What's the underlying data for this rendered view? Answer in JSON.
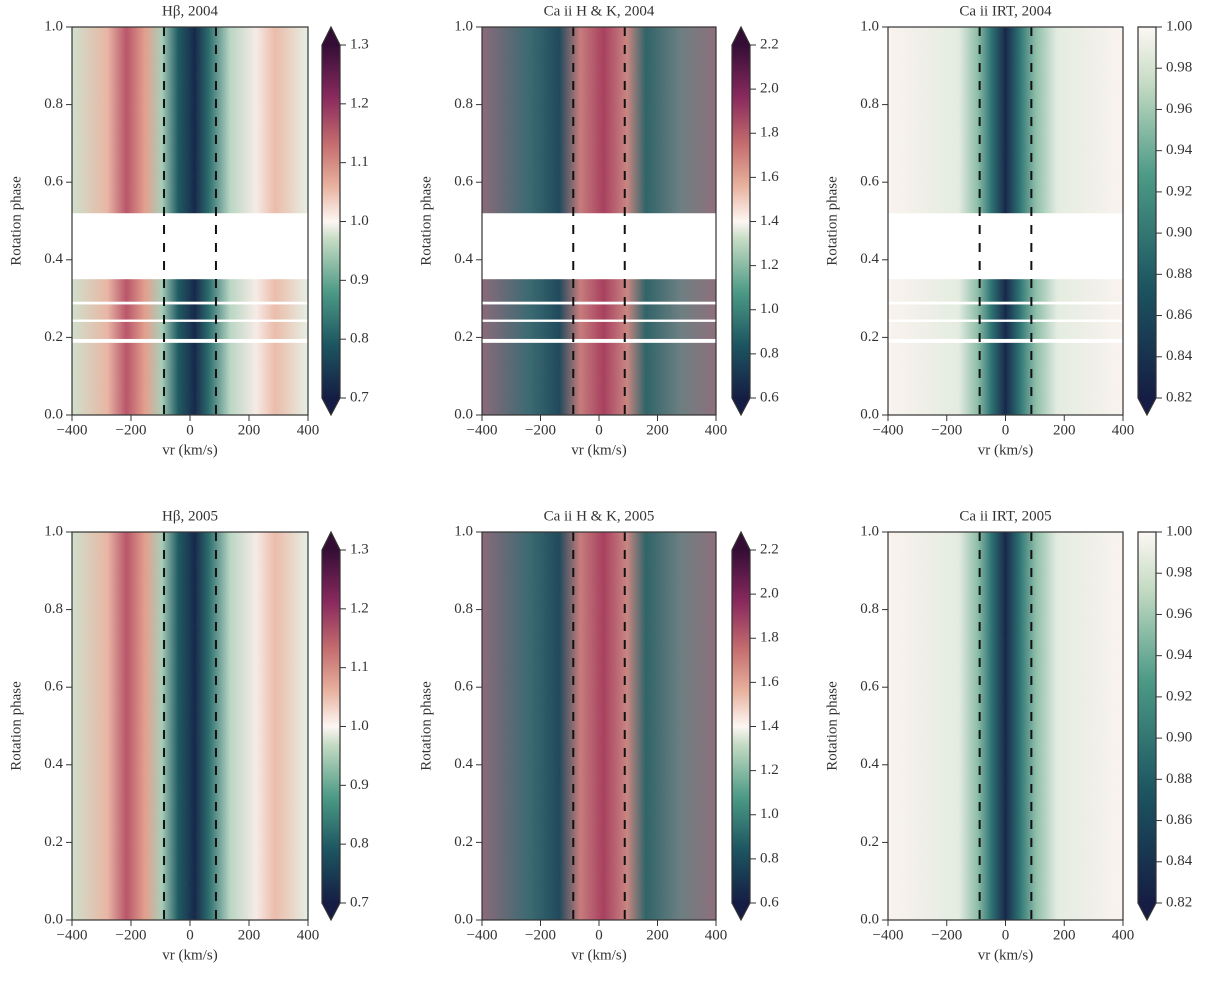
{
  "chart_data": [
    {
      "type": "heatmap",
      "title": "Hβ, 2004",
      "xlabel": "vr (km/s)",
      "ylabel": "Rotation phase",
      "xlim": [
        -400,
        400
      ],
      "xticks": [
        {
          "value": -400,
          "label": "−400"
        },
        {
          "value": -200,
          "label": "−200"
        },
        0,
        200,
        400
      ],
      "ylim": [
        0,
        1
      ],
      "yticks": [
        {
          "value": 0,
          "label": "0.0"
        },
        0.2,
        0.4,
        0.6,
        0.8,
        {
          "value": 1,
          "label": "1.0"
        }
      ],
      "vlines": [
        -88,
        88
      ],
      "colorbar": {
        "lim": [
          0.7,
          1.3
        ],
        "extend": "both",
        "ticks": [
          0.7,
          0.8,
          0.9,
          {
            "value": 1,
            "label": "1.0"
          },
          1.1,
          1.2,
          1.3
        ]
      }
    },
    {
      "type": "heatmap",
      "title": "Ca ii H & K, 2004",
      "xlabel": "vr (km/s)",
      "ylabel": "Rotation phase",
      "xlim": [
        -400,
        400
      ],
      "xticks": [
        {
          "value": -400,
          "label": "−400"
        },
        {
          "value": -200,
          "label": "−200"
        },
        0,
        200,
        400
      ],
      "ylim": [
        0,
        1
      ],
      "yticks": [
        {
          "value": 0,
          "label": "0.0"
        },
        0.2,
        0.4,
        0.6,
        0.8,
        {
          "value": 1,
          "label": "1.0"
        }
      ],
      "vlines": [
        -88,
        88
      ],
      "colorbar": {
        "lim": [
          0.6,
          2.2
        ],
        "extend": "both",
        "ticks": [
          0.6,
          0.8,
          {
            "value": 1,
            "label": "1.0"
          },
          1.2,
          1.4,
          1.6,
          1.8,
          {
            "value": 2,
            "label": "2.0"
          },
          2.2
        ]
      }
    },
    {
      "type": "heatmap",
      "title": "Ca ii IRT, 2004",
      "xlabel": "vr (km/s)",
      "ylabel": "Rotation phase",
      "xlim": [
        -400,
        400
      ],
      "xticks": [
        {
          "value": -400,
          "label": "−400"
        },
        {
          "value": -200,
          "label": "−200"
        },
        0,
        200,
        400
      ],
      "ylim": [
        0,
        1
      ],
      "yticks": [
        {
          "value": 0,
          "label": "0.0"
        },
        0.2,
        0.4,
        0.6,
        0.8,
        {
          "value": 1,
          "label": "1.0"
        }
      ],
      "vlines": [
        -88,
        88
      ],
      "colorbar": {
        "lim": [
          0.82,
          1
        ],
        "extend": "min",
        "ticks": [
          0.82,
          0.84,
          0.86,
          0.88,
          {
            "value": 0.9,
            "label": "0.90"
          },
          0.92,
          0.94,
          0.96,
          0.98,
          {
            "value": 1,
            "label": "1.00"
          }
        ]
      }
    },
    {
      "type": "heatmap",
      "title": "Hβ, 2005",
      "xlabel": "vr (km/s)",
      "ylabel": "Rotation phase",
      "xlim": [
        -400,
        400
      ],
      "xticks": [
        {
          "value": -400,
          "label": "−400"
        },
        {
          "value": -200,
          "label": "−200"
        },
        0,
        200,
        400
      ],
      "ylim": [
        0,
        1
      ],
      "yticks": [
        {
          "value": 0,
          "label": "0.0"
        },
        0.2,
        0.4,
        0.6,
        0.8,
        {
          "value": 1,
          "label": "1.0"
        }
      ],
      "vlines": [
        -88,
        88
      ],
      "colorbar": {
        "lim": [
          0.7,
          1.3
        ],
        "extend": "both",
        "ticks": [
          0.7,
          0.8,
          0.9,
          {
            "value": 1,
            "label": "1.0"
          },
          1.1,
          1.2,
          1.3
        ]
      }
    },
    {
      "type": "heatmap",
      "title": "Ca ii H & K, 2005",
      "xlabel": "vr (km/s)",
      "ylabel": "Rotation phase",
      "xlim": [
        -400,
        400
      ],
      "xticks": [
        {
          "value": -400,
          "label": "−400"
        },
        {
          "value": -200,
          "label": "−200"
        },
        0,
        200,
        400
      ],
      "ylim": [
        0,
        1
      ],
      "yticks": [
        {
          "value": 0,
          "label": "0.0"
        },
        0.2,
        0.4,
        0.6,
        0.8,
        {
          "value": 1,
          "label": "1.0"
        }
      ],
      "vlines": [
        -88,
        88
      ],
      "colorbar": {
        "lim": [
          0.6,
          2.2
        ],
        "extend": "both",
        "ticks": [
          0.6,
          0.8,
          {
            "value": 1,
            "label": "1.0"
          },
          1.2,
          1.4,
          1.6,
          1.8,
          {
            "value": 2,
            "label": "2.0"
          },
          2.2
        ]
      }
    },
    {
      "type": "heatmap",
      "title": "Ca ii IRT, 2005",
      "xlabel": "vr (km/s)",
      "ylabel": "Rotation phase",
      "xlim": [
        -400,
        400
      ],
      "xticks": [
        {
          "value": -400,
          "label": "−400"
        },
        {
          "value": -200,
          "label": "−200"
        },
        0,
        200,
        400
      ],
      "ylim": [
        0,
        1
      ],
      "yticks": [
        {
          "value": 0,
          "label": "0.0"
        },
        0.2,
        0.4,
        0.6,
        0.8,
        {
          "value": 1,
          "label": "1.0"
        }
      ],
      "vlines": [
        -88,
        88
      ],
      "colorbar": {
        "lim": [
          0.82,
          1
        ],
        "extend": "min",
        "ticks": [
          0.82,
          0.84,
          0.86,
          0.88,
          {
            "value": 0.9,
            "label": "0.90"
          },
          0.92,
          0.94,
          0.96,
          0.98,
          {
            "value": 1,
            "label": "1.00"
          }
        ]
      }
    }
  ]
}
